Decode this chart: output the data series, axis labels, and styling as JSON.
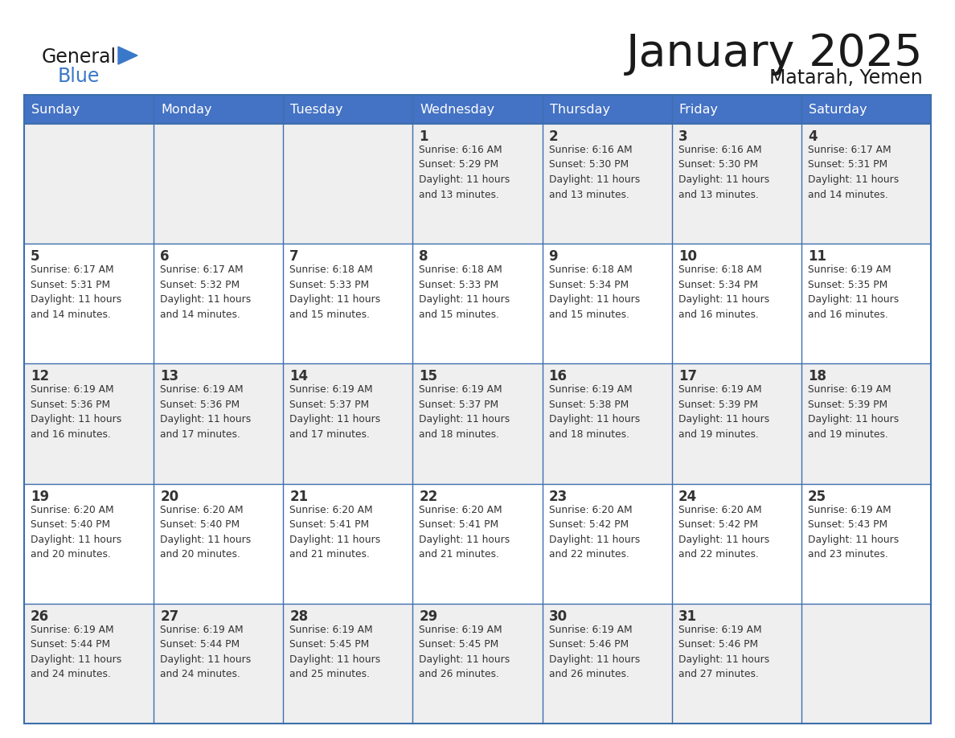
{
  "title": "January 2025",
  "subtitle": "Matarah, Yemen",
  "days_of_week": [
    "Sunday",
    "Monday",
    "Tuesday",
    "Wednesday",
    "Thursday",
    "Friday",
    "Saturday"
  ],
  "header_bg": "#4472C4",
  "header_text_color": "#FFFFFF",
  "cell_bg_gray": "#EFEFEF",
  "cell_bg_white": "#FFFFFF",
  "border_color": "#3d6fad",
  "text_color": "#333333",
  "day_num_color": "#333333",
  "title_color": "#1a1a1a",
  "logo_general_color": "#1a1a1a",
  "logo_blue_color": "#3a78c9",
  "weeks": [
    [
      {
        "day": null,
        "text": ""
      },
      {
        "day": null,
        "text": ""
      },
      {
        "day": null,
        "text": ""
      },
      {
        "day": 1,
        "text": "Sunrise: 6:16 AM\nSunset: 5:29 PM\nDaylight: 11 hours\nand 13 minutes."
      },
      {
        "day": 2,
        "text": "Sunrise: 6:16 AM\nSunset: 5:30 PM\nDaylight: 11 hours\nand 13 minutes."
      },
      {
        "day": 3,
        "text": "Sunrise: 6:16 AM\nSunset: 5:30 PM\nDaylight: 11 hours\nand 13 minutes."
      },
      {
        "day": 4,
        "text": "Sunrise: 6:17 AM\nSunset: 5:31 PM\nDaylight: 11 hours\nand 14 minutes."
      }
    ],
    [
      {
        "day": 5,
        "text": "Sunrise: 6:17 AM\nSunset: 5:31 PM\nDaylight: 11 hours\nand 14 minutes."
      },
      {
        "day": 6,
        "text": "Sunrise: 6:17 AM\nSunset: 5:32 PM\nDaylight: 11 hours\nand 14 minutes."
      },
      {
        "day": 7,
        "text": "Sunrise: 6:18 AM\nSunset: 5:33 PM\nDaylight: 11 hours\nand 15 minutes."
      },
      {
        "day": 8,
        "text": "Sunrise: 6:18 AM\nSunset: 5:33 PM\nDaylight: 11 hours\nand 15 minutes."
      },
      {
        "day": 9,
        "text": "Sunrise: 6:18 AM\nSunset: 5:34 PM\nDaylight: 11 hours\nand 15 minutes."
      },
      {
        "day": 10,
        "text": "Sunrise: 6:18 AM\nSunset: 5:34 PM\nDaylight: 11 hours\nand 16 minutes."
      },
      {
        "day": 11,
        "text": "Sunrise: 6:19 AM\nSunset: 5:35 PM\nDaylight: 11 hours\nand 16 minutes."
      }
    ],
    [
      {
        "day": 12,
        "text": "Sunrise: 6:19 AM\nSunset: 5:36 PM\nDaylight: 11 hours\nand 16 minutes."
      },
      {
        "day": 13,
        "text": "Sunrise: 6:19 AM\nSunset: 5:36 PM\nDaylight: 11 hours\nand 17 minutes."
      },
      {
        "day": 14,
        "text": "Sunrise: 6:19 AM\nSunset: 5:37 PM\nDaylight: 11 hours\nand 17 minutes."
      },
      {
        "day": 15,
        "text": "Sunrise: 6:19 AM\nSunset: 5:37 PM\nDaylight: 11 hours\nand 18 minutes."
      },
      {
        "day": 16,
        "text": "Sunrise: 6:19 AM\nSunset: 5:38 PM\nDaylight: 11 hours\nand 18 minutes."
      },
      {
        "day": 17,
        "text": "Sunrise: 6:19 AM\nSunset: 5:39 PM\nDaylight: 11 hours\nand 19 minutes."
      },
      {
        "day": 18,
        "text": "Sunrise: 6:19 AM\nSunset: 5:39 PM\nDaylight: 11 hours\nand 19 minutes."
      }
    ],
    [
      {
        "day": 19,
        "text": "Sunrise: 6:20 AM\nSunset: 5:40 PM\nDaylight: 11 hours\nand 20 minutes."
      },
      {
        "day": 20,
        "text": "Sunrise: 6:20 AM\nSunset: 5:40 PM\nDaylight: 11 hours\nand 20 minutes."
      },
      {
        "day": 21,
        "text": "Sunrise: 6:20 AM\nSunset: 5:41 PM\nDaylight: 11 hours\nand 21 minutes."
      },
      {
        "day": 22,
        "text": "Sunrise: 6:20 AM\nSunset: 5:41 PM\nDaylight: 11 hours\nand 21 minutes."
      },
      {
        "day": 23,
        "text": "Sunrise: 6:20 AM\nSunset: 5:42 PM\nDaylight: 11 hours\nand 22 minutes."
      },
      {
        "day": 24,
        "text": "Sunrise: 6:20 AM\nSunset: 5:42 PM\nDaylight: 11 hours\nand 22 minutes."
      },
      {
        "day": 25,
        "text": "Sunrise: 6:19 AM\nSunset: 5:43 PM\nDaylight: 11 hours\nand 23 minutes."
      }
    ],
    [
      {
        "day": 26,
        "text": "Sunrise: 6:19 AM\nSunset: 5:44 PM\nDaylight: 11 hours\nand 24 minutes."
      },
      {
        "day": 27,
        "text": "Sunrise: 6:19 AM\nSunset: 5:44 PM\nDaylight: 11 hours\nand 24 minutes."
      },
      {
        "day": 28,
        "text": "Sunrise: 6:19 AM\nSunset: 5:45 PM\nDaylight: 11 hours\nand 25 minutes."
      },
      {
        "day": 29,
        "text": "Sunrise: 6:19 AM\nSunset: 5:45 PM\nDaylight: 11 hours\nand 26 minutes."
      },
      {
        "day": 30,
        "text": "Sunrise: 6:19 AM\nSunset: 5:46 PM\nDaylight: 11 hours\nand 26 minutes."
      },
      {
        "day": 31,
        "text": "Sunrise: 6:19 AM\nSunset: 5:46 PM\nDaylight: 11 hours\nand 27 minutes."
      },
      {
        "day": null,
        "text": ""
      }
    ]
  ],
  "figsize": [
    11.88,
    9.18
  ],
  "dpi": 100
}
